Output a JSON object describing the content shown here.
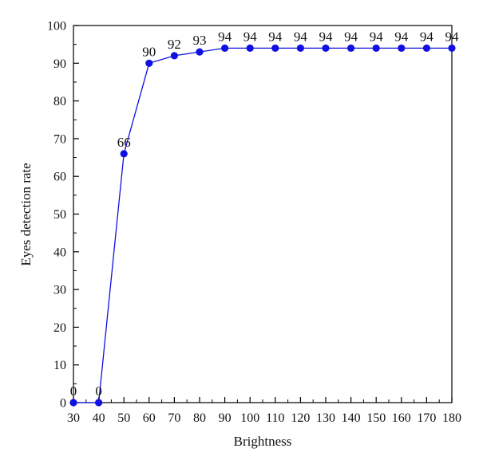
{
  "chart_data": {
    "type": "line",
    "title": "",
    "xlabel": "Brightness",
    "ylabel": "Eyes detection rate",
    "xlim": [
      30,
      180
    ],
    "ylim": [
      0,
      100
    ],
    "xticks": [
      30,
      40,
      50,
      60,
      70,
      80,
      90,
      100,
      110,
      120,
      130,
      140,
      150,
      160,
      170,
      180
    ],
    "yticks": [
      0,
      10,
      20,
      30,
      40,
      50,
      60,
      70,
      80,
      90,
      100
    ],
    "grid": false,
    "series": [
      {
        "color": "#1010e0",
        "x": [
          30,
          40,
          50,
          60,
          70,
          80,
          90,
          100,
          110,
          120,
          130,
          140,
          150,
          160,
          170,
          180
        ],
        "values": [
          0,
          0,
          66,
          90,
          92,
          93,
          94,
          94,
          94,
          94,
          94,
          94,
          94,
          94,
          94,
          94
        ]
      }
    ]
  }
}
